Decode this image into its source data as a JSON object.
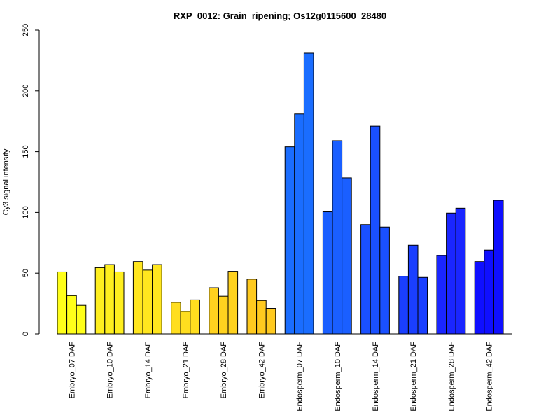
{
  "chart_data": {
    "type": "bar",
    "title": "RXP_0012: Grain_ripening; Os12g0115600_28480",
    "xlabel": "",
    "ylabel": "Cy3 signal intensity",
    "ylim": [
      0,
      250
    ],
    "yticks": [
      0,
      50,
      100,
      150,
      200,
      250
    ],
    "grid": false,
    "legend": "none",
    "categories": [
      "Embryo_07 DAF",
      "Embryo_10 DAF",
      "Embryo_14 DAF",
      "Embryo_21 DAF",
      "Embryo_28 DAF",
      "Embryo_42 DAF",
      "Endosperm_07 DAF",
      "Endosperm_10 DAF",
      "Endosperm_14 DAF",
      "Endosperm_21 DAF",
      "Endosperm_28 DAF",
      "Endosperm_42 DAF"
    ],
    "category_colors": [
      "#ffff1a",
      "#ffef1f",
      "#ffe61f",
      "#ffde1f",
      "#ffd21f",
      "#ffca1f",
      "#1a6dff",
      "#1a5fff",
      "#1a50ff",
      "#1a3fff",
      "#1a26ff",
      "#0f0fff"
    ],
    "values": [
      [
        51,
        31.5,
        23.5
      ],
      [
        54.5,
        57,
        51
      ],
      [
        59.5,
        52.5,
        57
      ],
      [
        26,
        18.5,
        28
      ],
      [
        38,
        31,
        51.5
      ],
      [
        45,
        27.5,
        21
      ],
      [
        154,
        181,
        231
      ],
      [
        100.5,
        159,
        128.5
      ],
      [
        90,
        171,
        88
      ],
      [
        47.5,
        73,
        46.5
      ],
      [
        64.5,
        99.5,
        103.5
      ],
      [
        59.5,
        69,
        110
      ]
    ]
  }
}
